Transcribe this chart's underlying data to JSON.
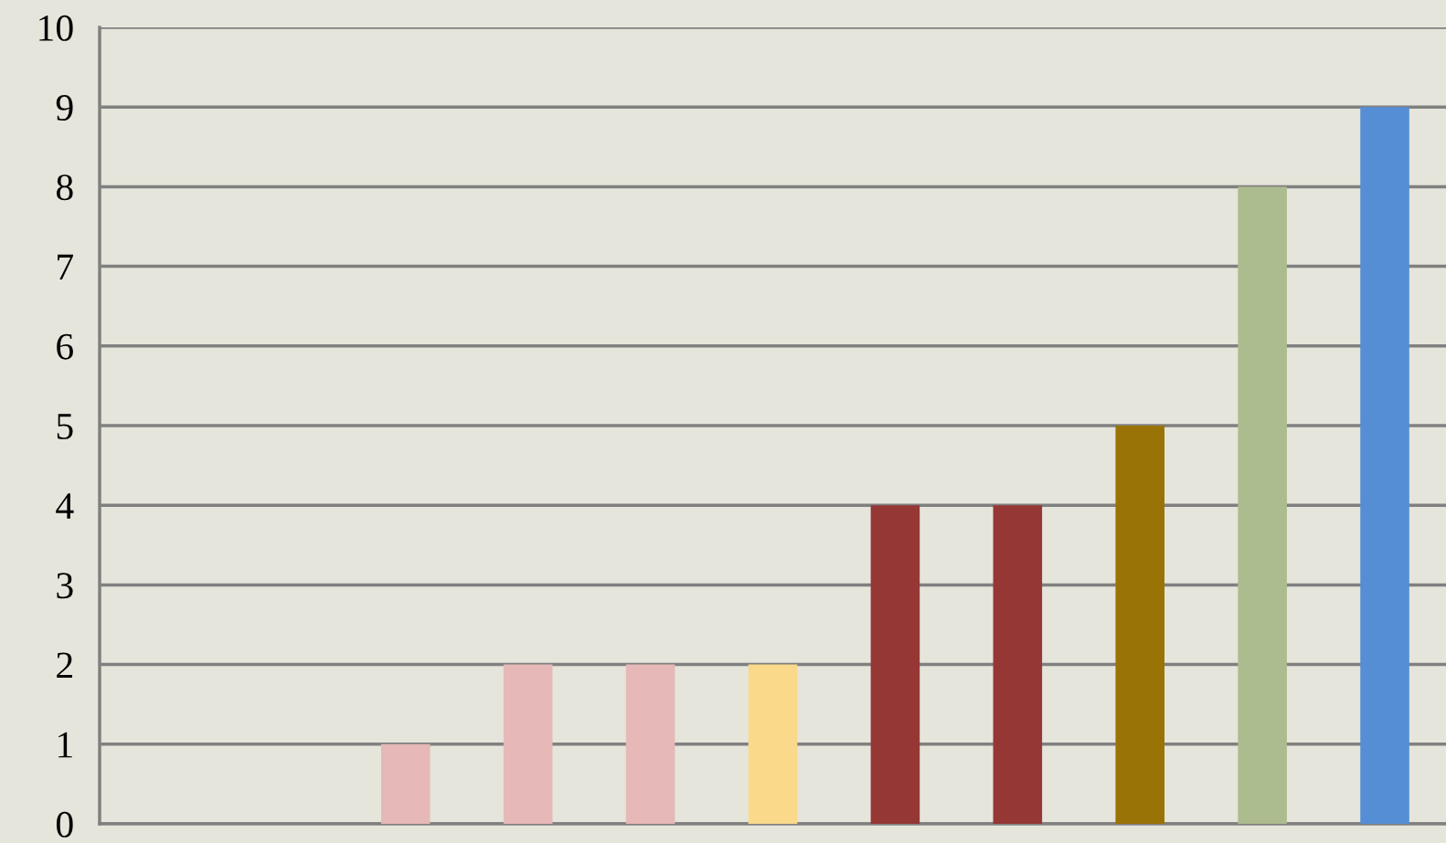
{
  "chart_data": {
    "type": "bar",
    "categories": [
      null,
      null,
      null,
      null,
      null,
      null,
      null,
      null,
      null,
      null,
      null
    ],
    "values": [
      0,
      0,
      1,
      2,
      2,
      2,
      4,
      4,
      5,
      8,
      9
    ],
    "colors": [
      "#e6b8b7",
      "#e6b8b7",
      "#e6b8b7",
      "#e6b8b7",
      "#e6b8b7",
      "#fada8a",
      "#953735",
      "#953735",
      "#9a7306",
      "#acbc8e",
      "#558ed5"
    ],
    "ylim": [
      0,
      10
    ],
    "yticks": [
      0,
      1,
      2,
      3,
      4,
      5,
      6,
      7,
      8,
      9,
      10
    ],
    "grid": "y",
    "tick_labels": "y"
  }
}
